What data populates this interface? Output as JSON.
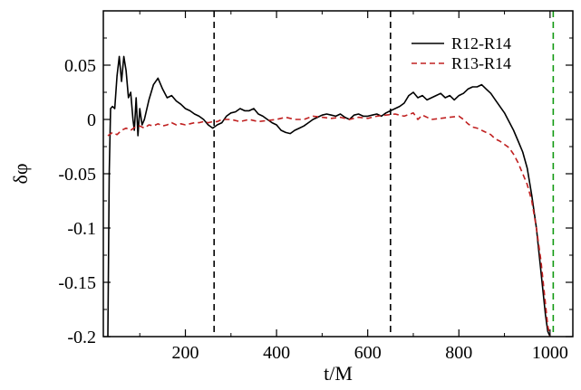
{
  "chart_data": {
    "type": "line",
    "title": "",
    "xlabel": "t/M",
    "ylabel": "δφ",
    "xlim": [
      20,
      1050
    ],
    "ylim": [
      -0.2,
      0.1
    ],
    "grid": false,
    "legend_position": "top-right",
    "x_ticks": [
      200,
      400,
      600,
      800,
      1000
    ],
    "x_tick_labels": [
      "200",
      "400",
      "600",
      "800",
      "1000"
    ],
    "y_ticks": [
      -0.2,
      -0.15,
      -0.1,
      -0.05,
      0,
      0.05
    ],
    "y_tick_labels": [
      "-0.2",
      "-0.15",
      "-0.1",
      "-0.05",
      "0",
      "0.05"
    ],
    "series": [
      {
        "name": "R12-R14",
        "color": "#000000",
        "dash": "solid",
        "x": [
          30,
          33,
          36,
          40,
          45,
          50,
          55,
          60,
          65,
          70,
          75,
          80,
          85,
          88,
          92,
          96,
          100,
          105,
          110,
          120,
          130,
          140,
          150,
          160,
          170,
          180,
          190,
          200,
          210,
          220,
          230,
          240,
          250,
          260,
          270,
          280,
          290,
          300,
          310,
          320,
          330,
          340,
          350,
          360,
          370,
          380,
          390,
          400,
          410,
          420,
          430,
          440,
          450,
          460,
          470,
          480,
          490,
          500,
          510,
          520,
          530,
          540,
          550,
          560,
          570,
          580,
          590,
          600,
          610,
          620,
          630,
          640,
          650,
          660,
          670,
          680,
          690,
          700,
          710,
          720,
          730,
          740,
          750,
          760,
          770,
          780,
          790,
          800,
          810,
          820,
          830,
          840,
          850,
          860,
          870,
          880,
          890,
          900,
          910,
          920,
          930,
          940,
          950,
          960,
          970,
          975,
          980,
          985,
          990,
          995,
          1000
        ],
        "y": [
          -0.2,
          -0.05,
          0.01,
          0.012,
          0.01,
          0.04,
          0.058,
          0.035,
          0.058,
          0.045,
          0.02,
          0.025,
          0.0,
          -0.01,
          0.02,
          -0.015,
          0.01,
          -0.005,
          0.0,
          0.018,
          0.032,
          0.038,
          0.028,
          0.02,
          0.022,
          0.017,
          0.014,
          0.01,
          0.008,
          0.005,
          0.003,
          0.0,
          -0.005,
          -0.008,
          -0.005,
          -0.003,
          0.003,
          0.006,
          0.007,
          0.01,
          0.008,
          0.008,
          0.01,
          0.005,
          0.003,
          0.0,
          -0.003,
          -0.005,
          -0.01,
          -0.012,
          -0.013,
          -0.01,
          -0.008,
          -0.006,
          -0.003,
          0.0,
          0.002,
          0.004,
          0.005,
          0.004,
          0.003,
          0.005,
          0.002,
          0.0,
          0.004,
          0.005,
          0.003,
          0.003,
          0.004,
          0.005,
          0.003,
          0.006,
          0.008,
          0.01,
          0.012,
          0.015,
          0.022,
          0.025,
          0.02,
          0.022,
          0.018,
          0.02,
          0.022,
          0.024,
          0.02,
          0.022,
          0.018,
          0.022,
          0.024,
          0.028,
          0.03,
          0.03,
          0.032,
          0.028,
          0.024,
          0.018,
          0.012,
          0.006,
          -0.002,
          -0.01,
          -0.02,
          -0.03,
          -0.045,
          -0.07,
          -0.1,
          -0.12,
          -0.14,
          -0.16,
          -0.18,
          -0.195,
          -0.2
        ]
      },
      {
        "name": "R13-R14",
        "color": "#c02020",
        "dash": "dashed",
        "x": [
          30,
          40,
          50,
          60,
          70,
          80,
          90,
          100,
          110,
          120,
          130,
          140,
          150,
          160,
          170,
          180,
          190,
          200,
          210,
          220,
          230,
          240,
          250,
          260,
          270,
          280,
          290,
          300,
          320,
          340,
          360,
          380,
          400,
          420,
          440,
          460,
          480,
          500,
          520,
          540,
          560,
          580,
          600,
          620,
          640,
          660,
          680,
          700,
          710,
          720,
          740,
          760,
          780,
          800,
          810,
          820,
          830,
          840,
          850,
          860,
          870,
          880,
          890,
          900,
          910,
          920,
          930,
          940,
          950,
          960,
          970,
          980,
          990,
          995,
          1000
        ],
        "y": [
          -0.015,
          -0.012,
          -0.014,
          -0.01,
          -0.008,
          -0.01,
          -0.007,
          -0.006,
          -0.008,
          -0.005,
          -0.006,
          -0.004,
          -0.006,
          -0.005,
          -0.003,
          -0.005,
          -0.004,
          -0.005,
          -0.004,
          -0.003,
          -0.003,
          -0.002,
          -0.003,
          -0.002,
          -0.002,
          0.0,
          0.0,
          0.0,
          -0.002,
          0.0,
          -0.002,
          -0.001,
          0.0,
          0.002,
          0.0,
          0.0,
          0.003,
          0.002,
          0.001,
          0.002,
          0.0,
          0.002,
          0.001,
          0.003,
          0.004,
          0.005,
          0.003,
          0.006,
          0.0,
          0.004,
          0.0,
          0.001,
          0.002,
          0.003,
          0.0,
          -0.004,
          -0.007,
          -0.008,
          -0.01,
          -0.012,
          -0.014,
          -0.018,
          -0.02,
          -0.023,
          -0.026,
          -0.032,
          -0.04,
          -0.05,
          -0.06,
          -0.075,
          -0.1,
          -0.13,
          -0.17,
          -0.19,
          -0.2
        ]
      }
    ],
    "vertical_lines": [
      {
        "x": 263,
        "color": "#000000",
        "dash": "dashed"
      },
      {
        "x": 650,
        "color": "#000000",
        "dash": "dashed"
      },
      {
        "x": 1007,
        "color": "#119911",
        "dash": "dashed"
      }
    ]
  }
}
